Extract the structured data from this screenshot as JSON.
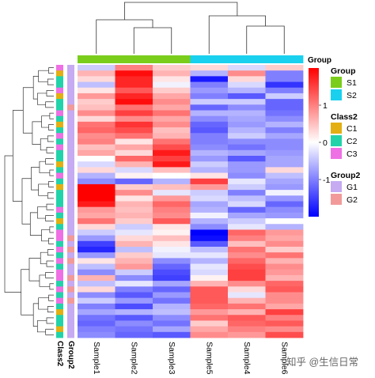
{
  "watermark": "知乎 @生信日常",
  "chart_data": {
    "type": "heatmap",
    "title": "",
    "columns": [
      "Sample1",
      "Sample2",
      "Sample3",
      "Sample5",
      "Sample4",
      "Sample6"
    ],
    "color_scale": {
      "min": -2,
      "max": 2,
      "low_color": "#0000FF",
      "mid_color": "#FFFFFF",
      "high_color": "#FF0000",
      "ticks": [
        1,
        0,
        -1
      ]
    },
    "column_annotations": {
      "name": "Group",
      "values": [
        "S1",
        "S1",
        "S1",
        "S2",
        "S2",
        "S2"
      ]
    },
    "row_annotation_labels": [
      "Class2",
      "Group2"
    ],
    "legend": [
      {
        "title": "Group",
        "items": [
          {
            "label": "S1",
            "color": "#7ACD1B"
          },
          {
            "label": "S2",
            "color": "#19D0EF"
          }
        ]
      },
      {
        "title": "Class2",
        "items": [
          {
            "label": "C1",
            "color": "#E3AF12"
          },
          {
            "label": "C2",
            "color": "#22D3AA"
          },
          {
            "label": "C3",
            "color": "#EF70E4"
          }
        ]
      },
      {
        "title": "Group2",
        "items": [
          {
            "label": "G1",
            "color": "#C6AAF2"
          },
          {
            "label": "G2",
            "color": "#F29A9A"
          }
        ]
      }
    ],
    "rows": [
      {
        "c": "C3",
        "g": "G1",
        "v": [
          -0.4,
          1.0,
          0.4,
          0.3,
          -0.3,
          0.4
        ]
      },
      {
        "c": "C1",
        "g": "G1",
        "v": [
          0.6,
          1.9,
          0.6,
          -0.6,
          0.9,
          -1.0
        ]
      },
      {
        "c": "C2",
        "g": "G1",
        "v": [
          0.3,
          1.7,
          0.2,
          -1.8,
          0.3,
          -1.0
        ]
      },
      {
        "c": "C2",
        "g": "G1",
        "v": [
          -0.5,
          1.7,
          -0.1,
          -1.0,
          -0.3,
          -1.6
        ]
      },
      {
        "c": "C3",
        "g": "G1",
        "v": [
          0.2,
          1.3,
          0.4,
          -0.8,
          -0.6,
          -1.0
        ]
      },
      {
        "c": "C1",
        "g": "G1",
        "v": [
          0.8,
          1.7,
          0.7,
          -1.0,
          -1.3,
          -0.4
        ]
      },
      {
        "c": "C2",
        "g": "G1",
        "v": [
          0.4,
          1.9,
          0.9,
          -0.4,
          -0.4,
          -1.2
        ]
      },
      {
        "c": "C2",
        "g": "G2",
        "v": [
          0.5,
          1.1,
          0.7,
          -1.2,
          -0.9,
          -1.2
        ]
      },
      {
        "c": "C3",
        "g": "G1",
        "v": [
          0.9,
          1.5,
          1.1,
          -0.6,
          -0.6,
          -1.1
        ]
      },
      {
        "c": "C2",
        "g": "G1",
        "v": [
          0.3,
          0.9,
          0.7,
          -0.9,
          -0.7,
          -0.9
        ]
      },
      {
        "c": "C1",
        "g": "G1",
        "v": [
          1.1,
          1.6,
          0.9,
          -1.2,
          -0.8,
          -0.6
        ]
      },
      {
        "c": "C2",
        "g": "G1",
        "v": [
          1.2,
          1.4,
          0.5,
          -1.3,
          -0.6,
          -1.0
        ]
      },
      {
        "c": "C3",
        "g": "G1",
        "v": [
          0.9,
          1.1,
          0.6,
          -1.0,
          -0.4,
          -0.7
        ]
      },
      {
        "c": "C2",
        "g": "G1",
        "v": [
          1.0,
          0.2,
          1.1,
          -1.0,
          -0.9,
          -0.9
        ]
      },
      {
        "c": "C3",
        "g": "G1",
        "v": [
          0.5,
          0.7,
          1.4,
          -0.9,
          -1.1,
          -0.9
        ]
      },
      {
        "c": "C2",
        "g": "G1",
        "v": [
          0.7,
          0.3,
          1.8,
          -0.6,
          -0.7,
          -0.8
        ]
      },
      {
        "c": "C2",
        "g": "G1",
        "v": [
          0.0,
          1.2,
          1.5,
          -0.8,
          -1.3,
          -0.7
        ]
      },
      {
        "c": "C1",
        "g": "G1",
        "v": [
          -0.3,
          0.6,
          1.8,
          -0.4,
          -0.8,
          -0.7
        ]
      },
      {
        "c": "C2",
        "g": "G1",
        "v": [
          0.3,
          -0.3,
          0.5,
          -0.6,
          -0.8,
          0.3
        ]
      },
      {
        "c": "C3",
        "g": "G1",
        "v": [
          -0.6,
          0.1,
          0.0,
          0.2,
          -0.9,
          -0.5
        ]
      },
      {
        "c": "C2",
        "g": "G1",
        "v": [
          -0.9,
          -1.2,
          -0.6,
          1.5,
          -0.2,
          -0.7
        ]
      },
      {
        "c": "C1",
        "g": "G1",
        "v": [
          2.0,
          0.4,
          0.5,
          0.8,
          -0.4,
          -0.8
        ]
      },
      {
        "c": "C2",
        "g": "G1",
        "v": [
          2.0,
          0.9,
          -0.2,
          -0.4,
          -1.0,
          -0.1
        ]
      },
      {
        "c": "C2",
        "g": "G1",
        "v": [
          2.0,
          0.2,
          0.8,
          -0.3,
          -0.5,
          -0.8
        ]
      },
      {
        "c": "C2",
        "g": "G1",
        "v": [
          1.8,
          0.6,
          1.2,
          -0.7,
          -0.3,
          -1.2
        ]
      },
      {
        "c": "C3",
        "g": "G1",
        "v": [
          0.8,
          0.5,
          1.0,
          -0.6,
          -1.2,
          -0.9
        ]
      },
      {
        "c": "C2",
        "g": "G1",
        "v": [
          0.7,
          0.6,
          0.9,
          -0.1,
          -0.7,
          -0.8
        ]
      },
      {
        "c": "C1",
        "g": "G1",
        "v": [
          1.1,
          0.4,
          1.3,
          -0.6,
          -0.4,
          0.0
        ]
      },
      {
        "c": "C2",
        "g": "G1",
        "v": [
          0.3,
          -0.4,
          0.2,
          -0.9,
          -0.2,
          -0.6
        ]
      },
      {
        "c": "C3",
        "g": "G1",
        "v": [
          -0.4,
          -0.2,
          0.1,
          -2.0,
          1.2,
          0.8
        ]
      },
      {
        "c": "C3",
        "g": "G2",
        "v": [
          -0.8,
          0.3,
          0.5,
          -1.9,
          1.0,
          0.7
        ]
      },
      {
        "c": "C2",
        "g": "G1",
        "v": [
          -1.5,
          0.6,
          0.2,
          -1.3,
          0.5,
          0.9
        ]
      },
      {
        "c": "C3",
        "g": "G2",
        "v": [
          -1.7,
          -0.5,
          -0.1,
          -0.5,
          1.1,
          0.4
        ]
      },
      {
        "c": "C2",
        "g": "G1",
        "v": [
          -0.8,
          0.4,
          -0.2,
          -0.2,
          0.9,
          1.1
        ]
      },
      {
        "c": "C3",
        "g": "G2",
        "v": [
          0.2,
          0.6,
          -0.9,
          -0.6,
          1.2,
          0.6
        ]
      },
      {
        "c": "C2",
        "g": "G1",
        "v": [
          -0.5,
          0.8,
          -1.2,
          -0.2,
          1.4,
          0.9
        ]
      },
      {
        "c": "C3",
        "g": "G1",
        "v": [
          -0.9,
          -0.4,
          -1.4,
          -0.3,
          1.5,
          0.8
        ]
      },
      {
        "c": "C3",
        "g": "G2",
        "v": [
          0.6,
          -0.9,
          -1.5,
          0.1,
          1.5,
          0.6
        ]
      },
      {
        "c": "C2",
        "g": "G1",
        "v": [
          -0.5,
          -0.2,
          -0.7,
          0.6,
          0.9,
          1.2
        ]
      },
      {
        "c": "C3",
        "g": "G2",
        "v": [
          0.3,
          -1.0,
          -1.2,
          1.3,
          0.3,
          1.3
        ]
      },
      {
        "c": "C2",
        "g": "G1",
        "v": [
          -0.9,
          -1.3,
          -0.8,
          1.3,
          -0.2,
          0.9
        ]
      },
      {
        "c": "C3",
        "g": "G2",
        "v": [
          -0.4,
          -0.8,
          -1.1,
          1.3,
          0.6,
          0.9
        ]
      },
      {
        "c": "C2",
        "g": "G1",
        "v": [
          -1.0,
          -1.4,
          -0.6,
          1.2,
          1.1,
          0.7
        ]
      },
      {
        "c": "C1",
        "g": "G1",
        "v": [
          -0.7,
          -0.6,
          -0.5,
          0.8,
          0.6,
          1.5
        ]
      },
      {
        "c": "C2",
        "g": "G1",
        "v": [
          -1.1,
          -1.3,
          -0.9,
          1.1,
          1.3,
          1.0
        ]
      },
      {
        "c": "C2",
        "g": "G1",
        "v": [
          -1.2,
          -0.9,
          -1.1,
          0.4,
          1.2,
          1.3
        ]
      },
      {
        "c": "C1",
        "g": "G1",
        "v": [
          -1.0,
          -1.1,
          -0.7,
          0.7,
          1.0,
          0.9
        ]
      },
      {
        "c": "C2",
        "g": "G1",
        "v": [
          -0.9,
          -1.2,
          -1.3,
          0.9,
          0.8,
          1.4
        ]
      }
    ]
  }
}
